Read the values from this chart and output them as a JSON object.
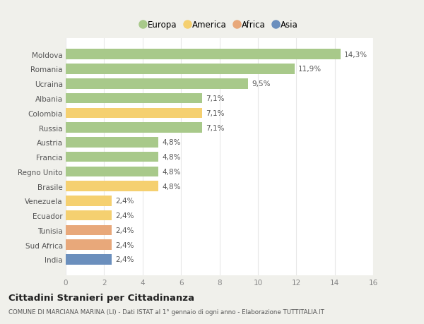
{
  "countries": [
    "Moldova",
    "Romania",
    "Ucraina",
    "Albania",
    "Colombia",
    "Russia",
    "Austria",
    "Francia",
    "Regno Unito",
    "Brasile",
    "Venezuela",
    "Ecuador",
    "Tunisia",
    "Sud Africa",
    "India"
  ],
  "values": [
    14.3,
    11.9,
    9.5,
    7.1,
    7.1,
    7.1,
    4.8,
    4.8,
    4.8,
    4.8,
    2.4,
    2.4,
    2.4,
    2.4,
    2.4
  ],
  "labels": [
    "14,3%",
    "11,9%",
    "9,5%",
    "7,1%",
    "7,1%",
    "7,1%",
    "4,8%",
    "4,8%",
    "4,8%",
    "4,8%",
    "2,4%",
    "2,4%",
    "2,4%",
    "2,4%",
    "2,4%"
  ],
  "continents": [
    "Europa",
    "Europa",
    "Europa",
    "Europa",
    "America",
    "Europa",
    "Europa",
    "Europa",
    "Europa",
    "America",
    "America",
    "America",
    "Africa",
    "Africa",
    "Asia"
  ],
  "colors": {
    "Europa": "#a8c98a",
    "America": "#f5d070",
    "Africa": "#e8a87a",
    "Asia": "#6b8fbd"
  },
  "xlim": [
    0,
    16
  ],
  "xticks": [
    0,
    2,
    4,
    6,
    8,
    10,
    12,
    14,
    16
  ],
  "title": "Cittadini Stranieri per Cittadinanza",
  "subtitle": "COMUNE DI MARCIANA MARINA (LI) - Dati ISTAT al 1° gennaio di ogni anno - Elaborazione TUTTITALIA.IT",
  "fig_bg_color": "#f0f0eb",
  "plot_bg_color": "#ffffff",
  "grid_color": "#e8e8e8",
  "bar_height": 0.7
}
